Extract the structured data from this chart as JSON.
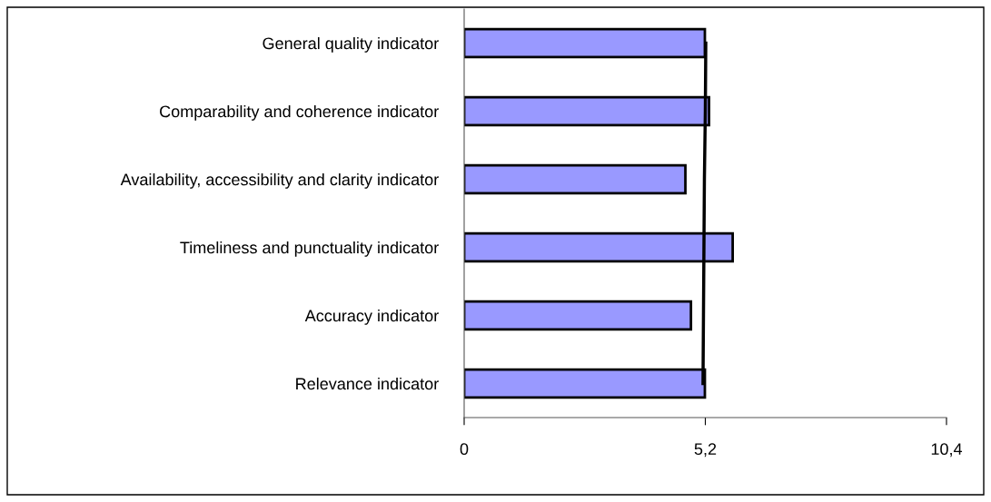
{
  "chart_data": {
    "type": "bar",
    "orientation": "horizontal",
    "categories": [
      "General quality indicator",
      "Comparability and coherence indicator",
      "Availability, accessibility and clarity indicator",
      "Timeliness and punctuality indicator",
      "Accuracy indicator",
      "Relevance indicator"
    ],
    "series": [
      {
        "color": "#9999ff",
        "values": [
          5.19,
          5.28,
          4.77,
          5.79,
          4.89,
          5.19
        ]
      },
      {
        "type": "line",
        "color": "#000000",
        "values": [
          5.21,
          5.2,
          5.18,
          5.17,
          5.16,
          5.15
        ]
      }
    ],
    "xlim": [
      0,
      10.4
    ],
    "xticks": [
      0,
      {
        "value": 5.2,
        "label": "5,2"
      },
      {
        "value": 10.4,
        "label": "10,4"
      }
    ],
    "grid": false,
    "legend": false
  }
}
